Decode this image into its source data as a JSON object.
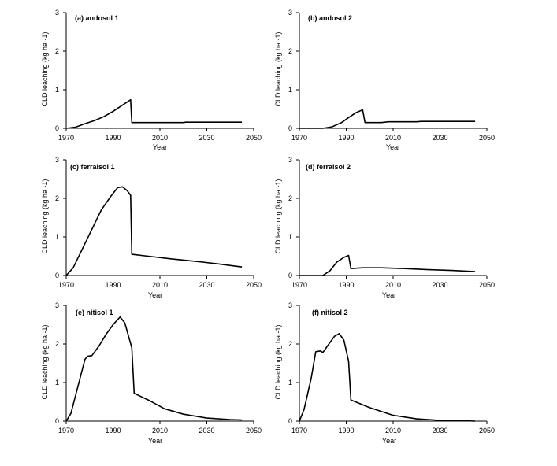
{
  "chart_data": [
    {
      "type": "line",
      "title": "(a) andosol 1",
      "xlabel": "Year",
      "ylabel": "CLD leaching (kg ha -1)",
      "xlim": [
        1970,
        2050
      ],
      "ylim": [
        0,
        3
      ],
      "xticks": [
        "1970",
        "1990",
        "2010",
        "2030",
        "2050"
      ],
      "yticks": [
        "0",
        "1",
        "2",
        "3"
      ],
      "series": [
        {
          "name": "andosol 1",
          "x": [
            1970,
            1974,
            1978,
            1982,
            1986,
            1990,
            1994,
            1997.5,
            1998,
            2005,
            2010,
            2020,
            2021,
            2030,
            2045
          ],
          "y": [
            0,
            0.03,
            0.12,
            0.2,
            0.3,
            0.44,
            0.6,
            0.74,
            0.15,
            0.15,
            0.15,
            0.15,
            0.16,
            0.16,
            0.16
          ]
        }
      ]
    },
    {
      "type": "line",
      "title": "(b) andosol 2",
      "xlabel": "Year",
      "ylabel": "CLD leaching (kg ha -1)",
      "xlim": [
        1970,
        2050
      ],
      "ylim": [
        0,
        3
      ],
      "xticks": [
        "1970",
        "1990",
        "2010",
        "2030",
        "2050"
      ],
      "yticks": [
        "0",
        "1",
        "2",
        "3"
      ],
      "series": [
        {
          "name": "andosol 2",
          "x": [
            1970,
            1980,
            1984,
            1988,
            1991,
            1994,
            1997,
            1998,
            2005,
            2008,
            2020,
            2022,
            2035,
            2045
          ],
          "y": [
            0,
            0,
            0.04,
            0.15,
            0.28,
            0.4,
            0.48,
            0.15,
            0.15,
            0.17,
            0.17,
            0.18,
            0.18,
            0.18
          ]
        }
      ]
    },
    {
      "type": "line",
      "title": "(c) ferralsol  1",
      "xlabel": "Year",
      "ylabel": "CLD leaching (kg ha -1)",
      "xlim": [
        1970,
        2050
      ],
      "ylim": [
        0,
        3
      ],
      "xticks": [
        "1970",
        "1990",
        "2010",
        "2030",
        "2050"
      ],
      "yticks": [
        "0",
        "1",
        "2",
        "3"
      ],
      "series": [
        {
          "name": "ferralsol 1",
          "x": [
            1970,
            1973,
            1977,
            1981,
            1985,
            1989,
            1992,
            1994,
            1996,
            1997.5,
            1998,
            2005,
            2015,
            2025,
            2035,
            2045
          ],
          "y": [
            0,
            0.2,
            0.7,
            1.2,
            1.7,
            2.05,
            2.28,
            2.3,
            2.2,
            2.08,
            0.55,
            0.5,
            0.43,
            0.37,
            0.3,
            0.22
          ]
        }
      ]
    },
    {
      "type": "line",
      "title": "(d) ferralsol  2",
      "xlabel": "Year",
      "ylabel": "CLD leaching (kg ha -1)",
      "xlim": [
        1970,
        2050
      ],
      "ylim": [
        0,
        3
      ],
      "xticks": [
        "1970",
        "1990",
        "2010",
        "2030",
        "2050"
      ],
      "yticks": [
        "0",
        "1",
        "2",
        "3"
      ],
      "series": [
        {
          "name": "ferralsol 2",
          "x": [
            1970,
            1980,
            1983,
            1986,
            1989,
            1991,
            1992,
            1997,
            2005,
            2015,
            2025,
            2035,
            2045
          ],
          "y": [
            0,
            0,
            0.12,
            0.35,
            0.47,
            0.52,
            0.18,
            0.2,
            0.2,
            0.18,
            0.15,
            0.13,
            0.1
          ]
        }
      ]
    },
    {
      "type": "line",
      "title": "(e) nitisol 1",
      "xlabel": "Year",
      "ylabel": "CLD leaching (kg ha -1)",
      "xlim": [
        1970,
        2050
      ],
      "ylim": [
        0,
        3
      ],
      "xticks": [
        "1970",
        "1990",
        "2010",
        "2030",
        "2050"
      ],
      "yticks": [
        "0",
        "1",
        "2",
        "3"
      ],
      "series": [
        {
          "name": "nitisol 1",
          "x": [
            1970,
            1972,
            1975,
            1978,
            1979,
            1981,
            1984,
            1987,
            1990,
            1993,
            1995,
            1998,
            1999,
            2005,
            2012,
            2020,
            2030,
            2040,
            2045
          ],
          "y": [
            0,
            0.2,
            0.9,
            1.6,
            1.68,
            1.7,
            1.95,
            2.25,
            2.5,
            2.7,
            2.55,
            1.9,
            0.72,
            0.55,
            0.32,
            0.18,
            0.08,
            0.04,
            0.03
          ]
        }
      ]
    },
    {
      "type": "line",
      "title": "(f) nitisol 2",
      "xlabel": "Year",
      "ylabel": "CLD leaching (kg ha -1)",
      "xlim": [
        1970,
        2050
      ],
      "ylim": [
        0,
        3
      ],
      "xticks": [
        "1970",
        "1990",
        "2010",
        "2030",
        "2050"
      ],
      "yticks": [
        "0",
        "1",
        "2",
        "3"
      ],
      "series": [
        {
          "name": "nitisol 2",
          "x": [
            1970,
            1972,
            1975,
            1977,
            1979,
            1980,
            1982,
            1985,
            1987,
            1989,
            1991,
            1992,
            2000,
            2010,
            2020,
            2030,
            2040,
            2045
          ],
          "y": [
            0,
            0.3,
            1.1,
            1.8,
            1.82,
            1.78,
            1.95,
            2.2,
            2.27,
            2.1,
            1.55,
            0.55,
            0.35,
            0.15,
            0.06,
            0.02,
            0.01,
            0
          ]
        }
      ]
    }
  ]
}
